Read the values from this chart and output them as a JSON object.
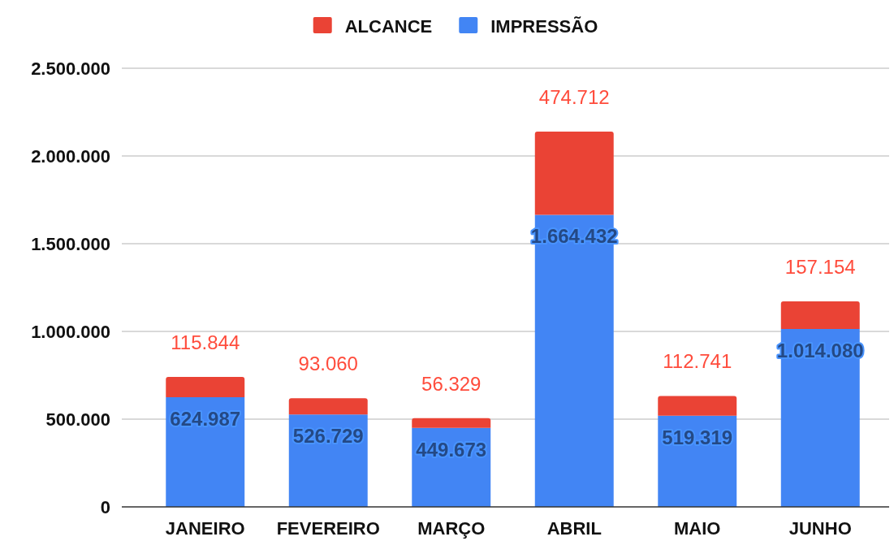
{
  "chart_data": {
    "type": "bar",
    "stacked": true,
    "categories": [
      "JANEIRO",
      "FEVEREIRO",
      "MARÇO",
      "ABRIL",
      "MAIO",
      "JUNHO"
    ],
    "series": [
      {
        "name": "IMPRESSÃO",
        "color": "#4285f4",
        "values": [
          624987,
          526729,
          449673,
          1664432,
          519319,
          1014080
        ],
        "value_labels": [
          "624.987",
          "526.729",
          "449.673",
          "1.664.432",
          "519.319",
          "1.014.080"
        ]
      },
      {
        "name": "ALCANCE",
        "color": "#ea4335",
        "values": [
          115844,
          93060,
          56329,
          474712,
          112741,
          157154
        ],
        "value_labels": [
          "115.844",
          "93.060",
          "56.329",
          "474.712",
          "112.741",
          "157.154"
        ]
      }
    ],
    "ylim": [
      0,
      2500000
    ],
    "yticks": [
      0,
      {
        "value": 500000,
        "label": "500.000"
      },
      {
        "value": 1000000,
        "label": "1.000.000"
      },
      {
        "value": 1500000,
        "label": "1.500.000"
      },
      {
        "value": 2000000,
        "label": "2.000.000"
      },
      {
        "value": 2500000,
        "label": "2.500.000"
      }
    ],
    "grid": "y",
    "legend": "top"
  }
}
